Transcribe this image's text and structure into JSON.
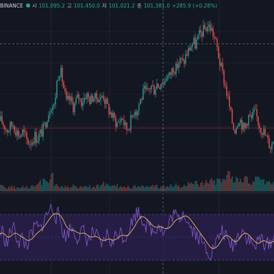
{
  "legend": {
    "symbol": "BINANCE",
    "status_color": "#26a69a",
    "open_label": "시",
    "open": "101,095.2",
    "high_label": "고",
    "high": "101,450.0",
    "low_label": "저",
    "low": "101,021.2",
    "close_label": "종",
    "close": "101,381.0",
    "change": "+285.9 (+0.28%)"
  },
  "colors": {
    "background": "#131722",
    "up": "#26a69a",
    "down": "#ef5350",
    "grid": "#2a2e39",
    "crosshair": "#787b86",
    "price_line": "#f23645",
    "oscillator_band": "#2a1f4a",
    "oscillator_line": "#7e57c2",
    "signal_line": "#f0c05a"
  },
  "chart_data": [
    {
      "type": "candlestick",
      "series": [
        {
          "name": "price",
          "values": [
            0.52,
            0.5,
            0.47,
            0.45,
            0.48,
            0.5,
            0.46,
            0.43,
            0.41,
            0.44,
            0.4,
            0.37,
            0.36,
            0.38,
            0.41,
            0.39,
            0.42,
            0.44,
            0.48,
            0.55,
            0.6,
            0.65,
            0.62,
            0.8,
            0.9,
            0.86,
            0.75,
            0.65,
            0.68,
            0.66,
            0.62,
            0.67,
            0.7,
            0.66,
            0.68,
            0.72,
            0.69,
            0.67,
            0.71,
            0.68,
            0.7,
            0.68,
            0.72,
            0.66,
            0.62,
            0.58,
            0.55,
            0.52,
            0.5,
            0.53,
            0.55,
            0.48,
            0.46,
            0.5,
            0.55,
            0.62,
            0.58,
            0.66,
            0.7,
            0.74,
            0.72,
            0.76,
            0.78,
            0.75,
            0.8,
            0.78,
            0.82,
            0.8,
            0.86,
            0.84,
            0.88,
            0.92,
            0.9,
            0.95,
            0.97,
            0.94,
            1.0,
            1.03,
            1.07,
            1.1,
            1.08,
            1.13,
            1.16,
            1.18,
            1.2,
            1.22,
            1.21,
            1.18,
            1.12,
            1.05,
            0.95,
            0.88,
            0.8,
            0.72,
            0.62,
            0.52,
            0.45,
            0.5,
            0.55,
            0.5,
            0.45,
            0.52,
            0.56,
            0.53,
            0.58,
            0.56,
            0.5,
            0.47,
            0.44,
            0.4,
            0.36,
            0.33,
            0.38
          ]
        }
      ]
    },
    {
      "type": "bar",
      "series": [
        {
          "name": "volume",
          "values": [
            0.12,
            0.1,
            0.09,
            0.08,
            0.11,
            0.1,
            0.09,
            0.07,
            0.12,
            0.1,
            0.09,
            0.11,
            0.1,
            0.13,
            0.12,
            0.14,
            0.2,
            0.18,
            0.35,
            0.18,
            0.15,
            0.5,
            0.12,
            0.14,
            0.1,
            0.09,
            0.12,
            0.11,
            0.1,
            0.09,
            0.12,
            0.1,
            0.09,
            0.11,
            0.1,
            0.09,
            0.12,
            0.1,
            0.09,
            0.11,
            0.13,
            0.12,
            0.2,
            0.15,
            0.12,
            0.1,
            0.09,
            0.12,
            0.14,
            0.1,
            0.09,
            0.12,
            0.1,
            0.09,
            0.11,
            0.1,
            0.13,
            0.11,
            0.1,
            0.09,
            0.12,
            0.1,
            0.11,
            0.13,
            0.12,
            0.1,
            0.09,
            0.11,
            0.1,
            0.12,
            0.14,
            0.13,
            0.15,
            0.12,
            0.1,
            0.13,
            0.14,
            0.18,
            0.16,
            0.15,
            0.2,
            0.18,
            0.17,
            0.22,
            0.25,
            0.28,
            0.3,
            0.26,
            0.24,
            0.28,
            0.32,
            0.3,
            0.4,
            0.38,
            0.35,
            0.33,
            0.3,
            0.28,
            0.25,
            0.27,
            0.3,
            0.26,
            0.24,
            0.22,
            0.25,
            0.28,
            0.3,
            0.26,
            0.24,
            0.25,
            0.22,
            0.2,
            0.18
          ]
        }
      ]
    },
    {
      "type": "line",
      "series": [
        {
          "name": "oscillator",
          "values": [
            0.55,
            0.6,
            0.45,
            0.4,
            0.55,
            0.65,
            0.6,
            0.48,
            0.42,
            0.5,
            0.4,
            0.38,
            0.48,
            0.55,
            0.62,
            0.68,
            0.6,
            0.65,
            0.75,
            0.82,
            0.88,
            0.95,
            0.9,
            0.78,
            0.85,
            0.7,
            0.55,
            0.5,
            0.58,
            0.65,
            0.6,
            0.52,
            0.5,
            0.55,
            0.6,
            0.5,
            0.45,
            0.48,
            0.58,
            0.52,
            0.48,
            0.4,
            0.38,
            0.5,
            0.55,
            0.45,
            0.4,
            0.5,
            0.55,
            0.6,
            0.52,
            0.48,
            0.55,
            0.65,
            0.72,
            0.8,
            0.88,
            0.85,
            0.78,
            0.72,
            0.65,
            0.68,
            0.6,
            0.58,
            0.65,
            0.7,
            0.62,
            0.55,
            0.6,
            0.68,
            0.78,
            0.85,
            0.8,
            0.75,
            0.82,
            0.88,
            0.8,
            0.7,
            0.65,
            0.6,
            0.55,
            0.5,
            0.45,
            0.4,
            0.35,
            0.3,
            0.25,
            0.32,
            0.4,
            0.45,
            0.55,
            0.6,
            0.52,
            0.45,
            0.4,
            0.38,
            0.42,
            0.5,
            0.58,
            0.62,
            0.55,
            0.48,
            0.45,
            0.4,
            0.35,
            0.4,
            0.45,
            0.5,
            0.42,
            0.38,
            0.4,
            0.45,
            0.5
          ]
        },
        {
          "name": "signal",
          "values": [
            0.55,
            0.56,
            0.54,
            0.5,
            0.5,
            0.53,
            0.56,
            0.55,
            0.52,
            0.5,
            0.48,
            0.45,
            0.45,
            0.47,
            0.51,
            0.55,
            0.58,
            0.61,
            0.65,
            0.7,
            0.75,
            0.8,
            0.84,
            0.84,
            0.84,
            0.8,
            0.74,
            0.66,
            0.62,
            0.6,
            0.6,
            0.58,
            0.56,
            0.55,
            0.56,
            0.55,
            0.52,
            0.5,
            0.5,
            0.51,
            0.5,
            0.47,
            0.45,
            0.45,
            0.47,
            0.47,
            0.45,
            0.46,
            0.48,
            0.51,
            0.53,
            0.52,
            0.52,
            0.55,
            0.6,
            0.65,
            0.72,
            0.77,
            0.8,
            0.79,
            0.76,
            0.72,
            0.68,
            0.65,
            0.64,
            0.65,
            0.65,
            0.63,
            0.62,
            0.63,
            0.66,
            0.71,
            0.75,
            0.77,
            0.78,
            0.8,
            0.81,
            0.79,
            0.75,
            0.7,
            0.65,
            0.6,
            0.55,
            0.5,
            0.45,
            0.4,
            0.35,
            0.33,
            0.34,
            0.37,
            0.42,
            0.48,
            0.52,
            0.52,
            0.5,
            0.46,
            0.43,
            0.44,
            0.48,
            0.53,
            0.56,
            0.55,
            0.52,
            0.48,
            0.44,
            0.41,
            0.41,
            0.44,
            0.45,
            0.43,
            0.41,
            0.42,
            0.44
          ]
        }
      ]
    }
  ]
}
